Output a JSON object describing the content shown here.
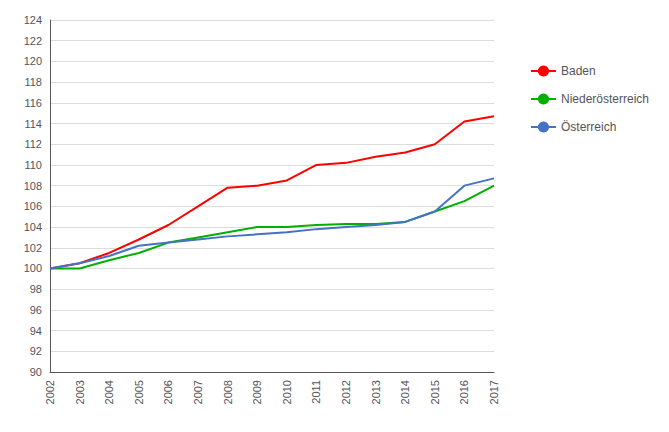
{
  "chart_data": {
    "type": "line",
    "x": [
      2002,
      2003,
      2004,
      2005,
      2006,
      2007,
      2008,
      2009,
      2010,
      2011,
      2012,
      2013,
      2014,
      2015,
      2016,
      2017
    ],
    "series": [
      {
        "name": "Baden",
        "color": "#ff0000",
        "values": [
          100.0,
          100.5,
          101.5,
          102.8,
          104.2,
          106.0,
          107.8,
          108.0,
          108.5,
          110.0,
          110.2,
          110.8,
          111.2,
          112.0,
          114.2,
          114.7
        ]
      },
      {
        "name": "Niederösterreich",
        "color": "#00b000",
        "values": [
          100.0,
          100.0,
          100.8,
          101.5,
          102.5,
          103.0,
          103.5,
          104.0,
          104.0,
          104.2,
          104.3,
          104.3,
          104.5,
          105.5,
          106.5,
          108.0
        ]
      },
      {
        "name": "Österreich",
        "color": "#4472c4",
        "values": [
          100.0,
          100.5,
          101.2,
          102.2,
          102.5,
          102.8,
          103.1,
          103.3,
          103.5,
          103.8,
          104.0,
          104.2,
          104.5,
          105.5,
          108.0,
          108.7
        ]
      }
    ],
    "xlim": [
      2002,
      2017
    ],
    "xticks": [
      2002,
      2003,
      2004,
      2005,
      2006,
      2007,
      2008,
      2009,
      2010,
      2011,
      2012,
      2013,
      2014,
      2015,
      2016,
      2017
    ],
    "ylim": [
      90,
      124
    ],
    "yticks": [
      90,
      92,
      94,
      96,
      98,
      100,
      102,
      104,
      106,
      108,
      110,
      112,
      114,
      116,
      118,
      120,
      122,
      124
    ],
    "grid": true,
    "legend": "right"
  }
}
